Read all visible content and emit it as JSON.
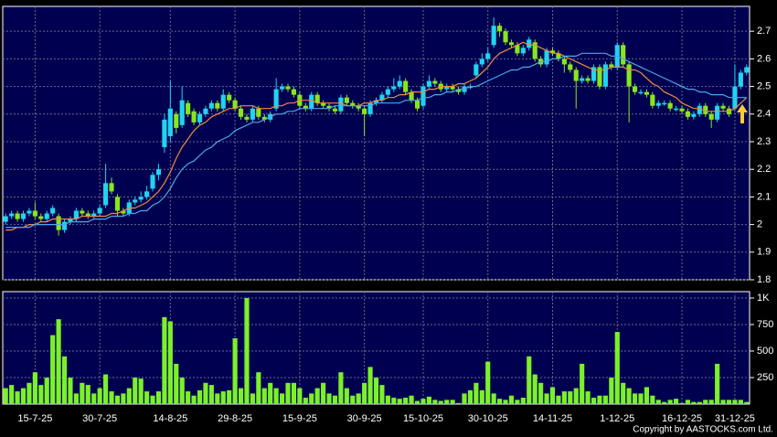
{
  "chart_data": [
    {
      "type": "candlestick",
      "categories": [
        null,
        null,
        null,
        null,
        null,
        "15-7-25",
        null,
        null,
        null,
        null,
        null,
        null,
        null,
        null,
        null,
        null,
        "30-7-25",
        null,
        null,
        null,
        null,
        null,
        null,
        null,
        null,
        null,
        null,
        null,
        "14-8-25",
        null,
        null,
        null,
        null,
        null,
        null,
        null,
        null,
        null,
        null,
        "29-8-25",
        null,
        null,
        null,
        null,
        null,
        null,
        null,
        null,
        null,
        null,
        "15-9-25",
        null,
        null,
        null,
        null,
        null,
        null,
        null,
        null,
        null,
        null,
        "30-9-25",
        null,
        null,
        null,
        null,
        null,
        null,
        null,
        null,
        null,
        "15-10-25",
        null,
        null,
        null,
        null,
        null,
        null,
        null,
        null,
        null,
        null,
        "30-10-25",
        null,
        null,
        null,
        null,
        null,
        null,
        null,
        null,
        null,
        null,
        "14-11-25",
        null,
        null,
        null,
        null,
        null,
        null,
        null,
        null,
        null,
        null,
        "1-12-25",
        null,
        null,
        null,
        null,
        null,
        null,
        null,
        null,
        null,
        null,
        "16-12-25",
        null,
        null,
        null,
        null,
        null,
        null,
        null,
        null,
        "31-12-25",
        null,
        null
      ],
      "open": [
        2.01,
        2.03,
        2.04,
        2.02,
        2.04,
        2.05,
        2.03,
        2.02,
        2.04,
        2.03,
        1.98,
        2.01,
        2.02,
        2.05,
        2.04,
        2.03,
        2.04,
        2.07,
        2.15,
        2.1,
        2.05,
        2.04,
        2.08,
        2.09,
        2.1,
        2.13,
        2.18,
        2.28,
        2.32,
        2.4,
        2.36,
        2.44,
        2.41,
        2.37,
        2.4,
        2.42,
        2.44,
        2.42,
        2.47,
        2.45,
        2.42,
        2.39,
        2.38,
        2.42,
        2.39,
        2.38,
        2.42,
        2.49,
        2.5,
        2.49,
        2.47,
        2.43,
        2.42,
        2.47,
        2.44,
        2.43,
        2.42,
        2.41,
        2.46,
        2.44,
        2.43,
        2.42,
        2.4,
        2.44,
        2.45,
        2.47,
        2.49,
        2.5,
        2.52,
        2.48,
        2.45,
        2.43,
        2.5,
        2.52,
        2.51,
        2.49,
        2.5,
        2.49,
        2.48,
        2.5,
        2.54,
        2.58,
        2.6,
        2.65,
        2.72,
        2.7,
        2.66,
        2.65,
        2.62,
        2.64,
        2.66,
        2.6,
        2.58,
        2.63,
        2.62,
        2.6,
        2.58,
        2.56,
        2.52,
        2.53,
        2.52,
        2.57,
        2.5,
        2.58,
        2.57,
        2.65,
        2.58,
        2.5,
        2.48,
        2.48,
        2.47,
        2.43,
        2.44,
        2.44,
        2.42,
        2.42,
        2.41,
        2.39,
        2.4,
        2.43,
        2.4,
        2.38,
        2.43,
        2.42,
        2.42,
        2.5,
        2.55
      ],
      "high": [
        2.04,
        2.05,
        2.05,
        2.05,
        2.06,
        2.08,
        2.04,
        2.05,
        2.07,
        2.04,
        2.02,
        2.03,
        2.06,
        2.06,
        2.05,
        2.05,
        2.07,
        2.22,
        2.17,
        2.11,
        2.06,
        2.09,
        2.1,
        2.12,
        2.14,
        2.19,
        2.22,
        2.4,
        2.52,
        2.41,
        2.5,
        2.45,
        2.42,
        2.41,
        2.43,
        2.45,
        2.45,
        2.49,
        2.48,
        2.46,
        2.43,
        2.4,
        2.43,
        2.43,
        2.4,
        2.41,
        2.53,
        2.51,
        2.51,
        2.5,
        2.48,
        2.44,
        2.48,
        2.48,
        2.45,
        2.44,
        2.43,
        2.47,
        2.47,
        2.45,
        2.44,
        2.43,
        2.45,
        2.46,
        2.48,
        2.5,
        2.53,
        2.54,
        2.53,
        2.49,
        2.46,
        2.51,
        2.54,
        2.53,
        2.52,
        2.51,
        2.51,
        2.5,
        2.51,
        2.51,
        2.59,
        2.62,
        2.64,
        2.75,
        2.73,
        2.71,
        2.67,
        2.66,
        2.65,
        2.68,
        2.67,
        2.61,
        2.64,
        2.64,
        2.63,
        2.61,
        2.59,
        2.57,
        2.54,
        2.54,
        2.58,
        2.58,
        2.59,
        2.59,
        2.66,
        2.66,
        2.59,
        2.51,
        2.49,
        2.49,
        2.48,
        2.45,
        2.45,
        2.45,
        2.43,
        2.43,
        2.42,
        2.41,
        2.44,
        2.44,
        2.41,
        2.44,
        2.44,
        2.43,
        2.58,
        2.56,
        2.58
      ],
      "low": [
        2.0,
        2.02,
        2.01,
        2.01,
        2.03,
        2.02,
        2.01,
        2.01,
        2.03,
        1.96,
        1.97,
        2.0,
        2.01,
        2.03,
        2.02,
        2.02,
        2.03,
        2.06,
        2.11,
        2.03,
        2.03,
        2.03,
        2.07,
        2.08,
        2.09,
        2.12,
        2.16,
        2.26,
        2.3,
        2.33,
        2.35,
        2.39,
        2.36,
        2.36,
        2.39,
        2.41,
        2.41,
        2.41,
        2.44,
        2.41,
        2.38,
        2.37,
        2.37,
        2.38,
        2.37,
        2.37,
        2.41,
        2.48,
        2.48,
        2.46,
        2.42,
        2.41,
        2.41,
        2.43,
        2.42,
        2.41,
        2.4,
        2.4,
        2.43,
        2.42,
        2.41,
        2.32,
        2.39,
        2.43,
        2.44,
        2.46,
        2.48,
        2.49,
        2.47,
        2.44,
        2.41,
        2.42,
        2.49,
        2.5,
        2.48,
        2.48,
        2.48,
        2.47,
        2.47,
        2.49,
        2.53,
        2.57,
        2.59,
        2.64,
        2.68,
        2.65,
        2.64,
        2.61,
        2.61,
        2.63,
        2.59,
        2.57,
        2.57,
        2.61,
        2.59,
        2.55,
        2.55,
        2.42,
        2.51,
        2.51,
        2.51,
        2.49,
        2.49,
        2.56,
        2.56,
        2.57,
        2.37,
        2.47,
        2.47,
        2.46,
        2.42,
        2.42,
        2.43,
        2.41,
        2.41,
        2.4,
        2.38,
        2.38,
        2.39,
        2.39,
        2.35,
        2.37,
        2.41,
        2.39,
        2.41,
        2.49,
        2.54
      ],
      "close": [
        2.03,
        2.04,
        2.02,
        2.04,
        2.05,
        2.03,
        2.02,
        2.04,
        2.06,
        1.98,
        2.01,
        2.02,
        2.05,
        2.04,
        2.03,
        2.04,
        2.06,
        2.15,
        2.12,
        2.05,
        2.04,
        2.08,
        2.09,
        2.1,
        2.12,
        2.18,
        2.2,
        2.38,
        2.42,
        2.35,
        2.45,
        2.4,
        2.37,
        2.4,
        2.42,
        2.44,
        2.42,
        2.47,
        2.45,
        2.42,
        2.39,
        2.38,
        2.42,
        2.39,
        2.38,
        2.4,
        2.49,
        2.5,
        2.49,
        2.47,
        2.43,
        2.42,
        2.47,
        2.44,
        2.43,
        2.42,
        2.41,
        2.46,
        2.44,
        2.43,
        2.42,
        2.4,
        2.44,
        2.45,
        2.47,
        2.49,
        2.5,
        2.52,
        2.48,
        2.45,
        2.42,
        2.5,
        2.52,
        2.51,
        2.49,
        2.5,
        2.49,
        2.48,
        2.5,
        2.5,
        2.58,
        2.6,
        2.62,
        2.72,
        2.7,
        2.66,
        2.65,
        2.62,
        2.64,
        2.67,
        2.6,
        2.58,
        2.63,
        2.62,
        2.6,
        2.58,
        2.56,
        2.52,
        2.53,
        2.52,
        2.57,
        2.5,
        2.58,
        2.57,
        2.65,
        2.58,
        2.5,
        2.48,
        2.48,
        2.47,
        2.43,
        2.44,
        2.44,
        2.42,
        2.42,
        2.41,
        2.39,
        2.4,
        2.43,
        2.4,
        2.38,
        2.43,
        2.42,
        2.4,
        2.5,
        2.55,
        2.57
      ],
      "up_color": "#22d3f0",
      "down_color": "#88e61e",
      "overlays": [
        {
          "color": "#f08a3c",
          "values": [
            1.98,
            1.98,
            1.99,
            1.99,
            2.0,
            2.0,
            2.01,
            2.01,
            2.02,
            2.02,
            2.02,
            2.02,
            2.02,
            2.03,
            2.03,
            2.03,
            2.03,
            2.03,
            2.04,
            2.04,
            2.05,
            2.06,
            2.06,
            2.07,
            2.08,
            2.1,
            2.12,
            2.15,
            2.19,
            2.24,
            2.28,
            2.31,
            2.34,
            2.36,
            2.37,
            2.39,
            2.4,
            2.41,
            2.42,
            2.42,
            2.43,
            2.43,
            2.43,
            2.42,
            2.42,
            2.42,
            2.43,
            2.43,
            2.44,
            2.44,
            2.45,
            2.45,
            2.45,
            2.44,
            2.44,
            2.44,
            2.44,
            2.44,
            2.43,
            2.43,
            2.43,
            2.44,
            2.44,
            2.45,
            2.45,
            2.46,
            2.46,
            2.47,
            2.47,
            2.48,
            2.48,
            2.48,
            2.49,
            2.49,
            2.5,
            2.5,
            2.5,
            2.51,
            2.51,
            2.52,
            2.53,
            2.55,
            2.57,
            2.6,
            2.62,
            2.63,
            2.64,
            2.65,
            2.66,
            2.65,
            2.65,
            2.64,
            2.63,
            2.62,
            2.62,
            2.61,
            2.6,
            2.59,
            2.58,
            2.57,
            2.56,
            2.56,
            2.56,
            2.57,
            2.57,
            2.57,
            2.56,
            2.56,
            2.55,
            2.53,
            2.51,
            2.5,
            2.48,
            2.47,
            2.46,
            2.44,
            2.43,
            2.42,
            2.42,
            2.41,
            2.41,
            2.41,
            2.41,
            2.41,
            2.42,
            2.44,
            2.46
          ]
        },
        {
          "color": "#4aa8e8",
          "values": [
            1.99,
            1.99,
            1.99,
            1.99,
            1.99,
            2.0,
            2.0,
            2.0,
            2.0,
            2.0,
            2.0,
            2.01,
            2.01,
            2.01,
            2.01,
            2.02,
            2.02,
            2.02,
            2.03,
            2.03,
            2.03,
            2.04,
            2.04,
            2.05,
            2.05,
            2.07,
            2.08,
            2.1,
            2.13,
            2.17,
            2.2,
            2.22,
            2.23,
            2.25,
            2.27,
            2.28,
            2.3,
            2.31,
            2.32,
            2.34,
            2.35,
            2.36,
            2.37,
            2.37,
            2.38,
            2.39,
            2.4,
            2.4,
            2.41,
            2.41,
            2.42,
            2.42,
            2.42,
            2.42,
            2.42,
            2.42,
            2.43,
            2.43,
            2.43,
            2.43,
            2.43,
            2.43,
            2.43,
            2.44,
            2.44,
            2.44,
            2.44,
            2.44,
            2.45,
            2.45,
            2.45,
            2.46,
            2.46,
            2.47,
            2.47,
            2.48,
            2.48,
            2.49,
            2.49,
            2.5,
            2.5,
            2.51,
            2.52,
            2.53,
            2.54,
            2.55,
            2.56,
            2.56,
            2.57,
            2.57,
            2.58,
            2.59,
            2.59,
            2.6,
            2.6,
            2.61,
            2.61,
            2.61,
            2.62,
            2.62,
            2.62,
            2.62,
            2.62,
            2.61,
            2.61,
            2.6,
            2.59,
            2.58,
            2.57,
            2.56,
            2.55,
            2.54,
            2.53,
            2.52,
            2.51,
            2.5,
            2.49,
            2.49,
            2.48,
            2.48,
            2.47,
            2.47,
            2.47,
            2.46,
            2.46,
            2.46,
            2.46
          ]
        }
      ],
      "ylim": [
        1.8,
        2.79
      ],
      "yticks": [
        1.8,
        1.9,
        2,
        2.1,
        2.2,
        2.3,
        2.4,
        2.5,
        2.6,
        2.7
      ],
      "grid": true
    },
    {
      "type": "bar",
      "values": [
        150,
        180,
        120,
        150,
        200,
        300,
        180,
        250,
        650,
        800,
        450,
        250,
        100,
        200,
        180,
        100,
        150,
        280,
        120,
        80,
        100,
        150,
        250,
        240,
        120,
        80,
        120,
        820,
        780,
        380,
        250,
        120,
        80,
        130,
        200,
        180,
        100,
        120,
        130,
        620,
        150,
        1000,
        100,
        300,
        150,
        200,
        150,
        100,
        200,
        200,
        150,
        60,
        100,
        150,
        200,
        100,
        80,
        300,
        150,
        80,
        100,
        200,
        350,
        250,
        180,
        80,
        60,
        50,
        60,
        80,
        30,
        50,
        70,
        40,
        30,
        40,
        40,
        10,
        100,
        130,
        200,
        130,
        400,
        100,
        50,
        40,
        80,
        40,
        60,
        450,
        280,
        200,
        100,
        160,
        80,
        120,
        120,
        150,
        380,
        120,
        60,
        80,
        80,
        250,
        680,
        200,
        150,
        100,
        100,
        160,
        80,
        40,
        20,
        40,
        50,
        10,
        40,
        20,
        20,
        40,
        40,
        380,
        40,
        40,
        40,
        40,
        20
      ],
      "color": "#7cf02a",
      "ylim": [
        0,
        1060
      ],
      "yticks": [
        250,
        500,
        750,
        {
          "value": 1000,
          "label": "1K"
        }
      ],
      "grid": true
    }
  ],
  "footer": "Copyright by AASTOCKS.com Ltd."
}
